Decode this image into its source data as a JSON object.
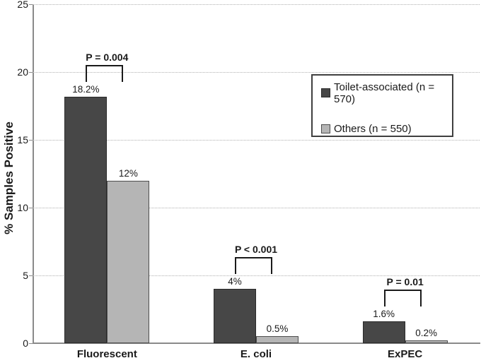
{
  "chart_data": {
    "type": "bar",
    "title": "",
    "ylabel": "% Samples Positive",
    "xlabel": "",
    "ylim": [
      0,
      25
    ],
    "yticks": [
      0,
      5,
      10,
      15,
      20,
      25
    ],
    "grid": "horizontal dotted gridlines at each y tick",
    "legend_position": "inside upper right",
    "categories": [
      "Fluorescent",
      "E. coli",
      "ExPEC"
    ],
    "series": [
      {
        "name": "Toilet-associated (n = 570)",
        "color": "#474747",
        "border_color": "#2a2a2a",
        "values": [
          18.2,
          4,
          1.6
        ],
        "value_labels": [
          "18.2%",
          "4%",
          "1.6%"
        ]
      },
      {
        "name": "Others (n = 550)",
        "color": "#b5b5b5",
        "border_color": "#4d4d4d",
        "values": [
          12,
          0.5,
          0.2
        ],
        "value_labels": [
          "12%",
          "0.5%",
          "0.2%"
        ]
      }
    ],
    "significance_brackets": [
      {
        "category": "Fluorescent",
        "label": "P = 0.004"
      },
      {
        "category": "E. coli",
        "label": "P < 0.001"
      },
      {
        "category": "ExPEC",
        "label": "P = 0.01"
      }
    ],
    "colors": {
      "axis": "#8a8a8a",
      "gridline": "#b0b0b0",
      "text": "#1a1a1a",
      "bracket": "#1a1a1a",
      "legend_border": "#3f3f3f",
      "background": "#ffffff"
    }
  }
}
